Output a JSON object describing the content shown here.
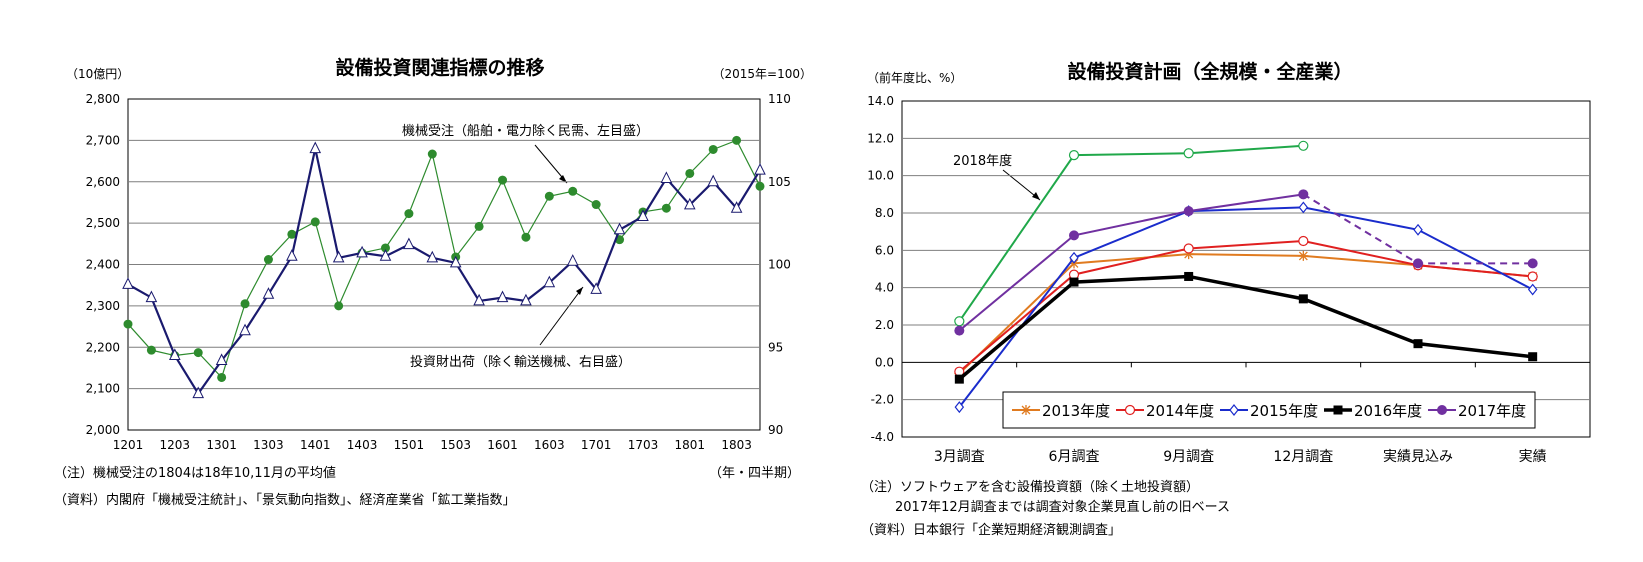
{
  "chart_data": [
    {
      "type": "line",
      "title": "設備投資関連指標の推移",
      "y_left_unit": "（10億円）",
      "y_right_unit": "（2015年=100）",
      "x_unit": "（年・四半期）",
      "ylim_left": [
        2000,
        2800
      ],
      "ylim_right": [
        90,
        110
      ],
      "yticks_left": [
        "2,000",
        "2,100",
        "2,200",
        "2,300",
        "2,400",
        "2,500",
        "2,600",
        "2,700",
        "2,800"
      ],
      "yticks_right": [
        "90",
        "95",
        "100",
        "105",
        "110"
      ],
      "xticks": [
        "1201",
        "1203",
        "1301",
        "1303",
        "1401",
        "1403",
        "1501",
        "1503",
        "1601",
        "1603",
        "1701",
        "1703",
        "1801",
        "1803"
      ],
      "x": [
        "1201",
        "1202",
        "1203",
        "1204",
        "1301",
        "1302",
        "1303",
        "1304",
        "1401",
        "1402",
        "1403",
        "1404",
        "1501",
        "1502",
        "1503",
        "1504",
        "1601",
        "1602",
        "1603",
        "1604",
        "1701",
        "1702",
        "1703",
        "1704",
        "1801",
        "1802",
        "1803",
        "1804"
      ],
      "series": [
        {
          "name": "機械受注（船舶・電力除く民需、左目盛）",
          "axis": "left",
          "color": "#2e8b2e",
          "values": [
            2256,
            2193,
            2180,
            2187,
            2127,
            2305,
            2412,
            2473,
            2503,
            2300,
            2428,
            2440,
            2523,
            2667,
            2418,
            2492,
            2604,
            2466,
            2565,
            2577,
            2545,
            2460,
            2527,
            2536,
            2620,
            2678,
            2700,
            2589
          ]
        },
        {
          "name": "投資財出荷（除く輸送機械、右目盛）",
          "axis": "right",
          "color": "#1a1a6e",
          "values": [
            98.8,
            98.0,
            94.5,
            92.2,
            94.2,
            96.0,
            98.2,
            100.5,
            107.0,
            100.4,
            100.7,
            100.5,
            101.2,
            100.4,
            100.1,
            97.8,
            98.0,
            97.8,
            98.9,
            100.2,
            98.5,
            102.1,
            102.9,
            105.2,
            103.6,
            105.0,
            103.4,
            105.7
          ]
        }
      ],
      "notes": [
        "（注）機械受注の1804は18年10,11月の平均値",
        "（資料）内閣府「機械受注統計」、「景気動向指数」、経済産業省「鉱工業指数」"
      ]
    },
    {
      "type": "line",
      "title": "設備投資計画（全規模・全産業）",
      "y_unit": "（前年度比、%）",
      "ylim": [
        -4,
        14
      ],
      "yticks": [
        "-4.0",
        "-2.0",
        "0.0",
        "2.0",
        "4.0",
        "6.0",
        "8.0",
        "10.0",
        "12.0",
        "14.0"
      ],
      "categories": [
        "3月調査",
        "6月調査",
        "9月調査",
        "12月調査",
        "実績見込み",
        "実績"
      ],
      "series": [
        {
          "name": "2013年度",
          "color": "#e07b20",
          "marker": "star",
          "values": [
            -0.6,
            5.3,
            5.8,
            5.7,
            5.2,
            4.6
          ]
        },
        {
          "name": "2014年度",
          "color": "#e02020",
          "marker": "circle-open",
          "values": [
            -0.5,
            4.7,
            6.1,
            6.5,
            5.2,
            4.6
          ]
        },
        {
          "name": "2015年度",
          "color": "#1a2ccc",
          "marker": "diamond-open",
          "values": [
            -2.4,
            5.6,
            8.1,
            8.3,
            7.1,
            3.9
          ]
        },
        {
          "name": "2016年度",
          "color": "#000000",
          "marker": "square",
          "values": [
            -0.9,
            4.3,
            4.6,
            3.4,
            1.0,
            0.3
          ]
        },
        {
          "name": "2017年度",
          "color": "#7030a0",
          "marker": "circle",
          "values": [
            1.7,
            6.8,
            8.1,
            9.0,
            5.3,
            5.3
          ]
        },
        {
          "name": "2018年度",
          "color": "#20a84a",
          "marker": "circle-open",
          "values": [
            2.2,
            11.1,
            11.2,
            11.6,
            null,
            null
          ]
        }
      ],
      "annotation": "2018年度",
      "notes": [
        "（注）ソフトウェアを含む設備投資額（除く土地投資額）",
        "2017年12月調査までは調査対象企業見直し前の旧ベース",
        "（資料）日本銀行「企業短期経済観測調査」"
      ]
    }
  ],
  "labels": {
    "left_series1": "機械受注（船舶・電力除く民需、左目盛）",
    "left_series2": "投資財出荷（除く輸送機械、右目盛）"
  }
}
